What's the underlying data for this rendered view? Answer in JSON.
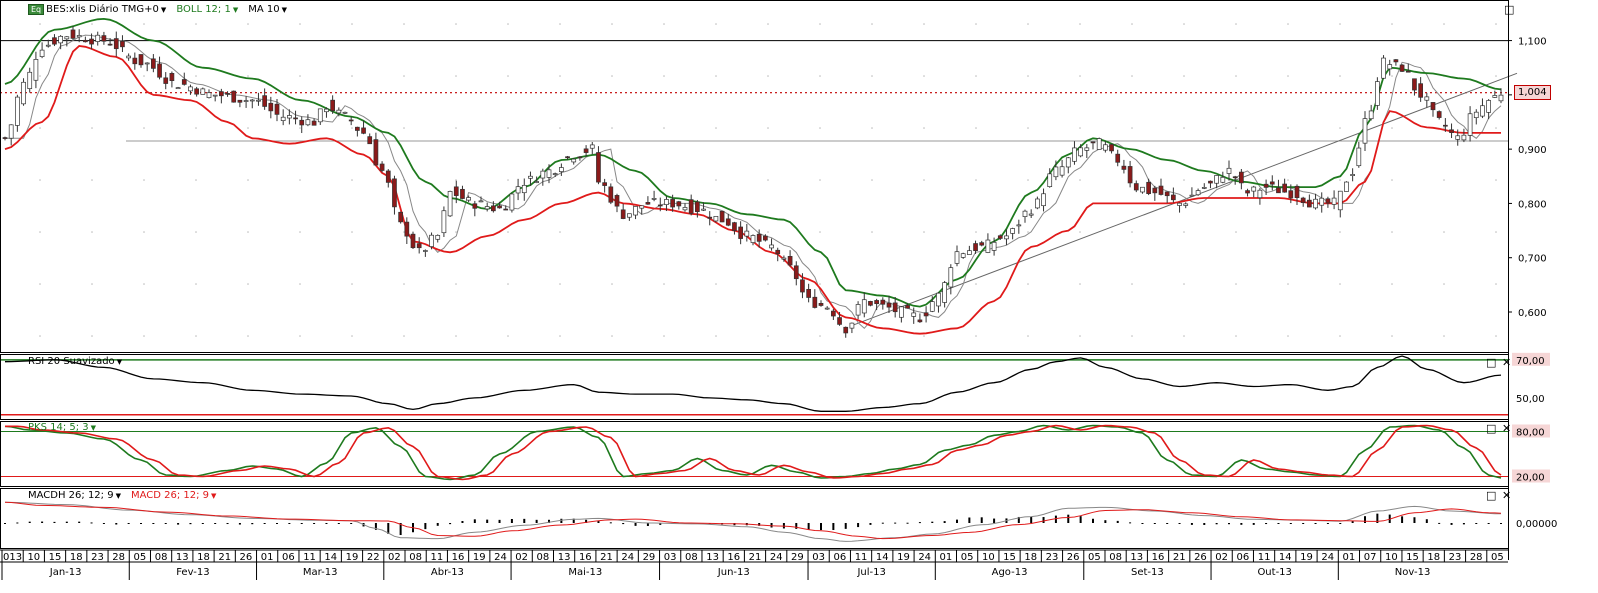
{
  "panes": {
    "price": {
      "title": "BES:xlis Diário TMG+0",
      "badge": "Eq",
      "tags": [
        {
          "label": "BOLL 12; 1",
          "color": "#1e7a1e"
        },
        {
          "label": "MA 10",
          "color": "#000000"
        }
      ],
      "yticks": [
        "1,100",
        "1,000",
        "0,900",
        "0,800",
        "0,700",
        "0,600"
      ],
      "current_price": "1,004"
    },
    "rsi": {
      "title": "RSI 20 Suavizado",
      "levels": [
        "70,00",
        "50,00"
      ]
    },
    "pks": {
      "title": "PKS 14; 5; 3",
      "levels": [
        "80,00",
        "20,00"
      ]
    },
    "macd": {
      "title_h": "MACDH 26; 12; 9",
      "title_m": "MACD 26; 12; 9",
      "level": "0,00000"
    }
  },
  "xaxis": {
    "days": [
      "013",
      "10",
      "15",
      "18",
      "23",
      "28",
      "05",
      "08",
      "13",
      "18",
      "21",
      "26",
      "01",
      "06",
      "11",
      "14",
      "19",
      "22",
      "02",
      "08",
      "11",
      "16",
      "19",
      "24",
      "02",
      "08",
      "13",
      "16",
      "21",
      "24",
      "29",
      "03",
      "08",
      "13",
      "16",
      "21",
      "24",
      "29",
      "03",
      "06",
      "11",
      "14",
      "19",
      "24",
      "01",
      "05",
      "10",
      "15",
      "18",
      "23",
      "26",
      "05",
      "08",
      "13",
      "16",
      "21",
      "26",
      "02",
      "06",
      "11",
      "14",
      "19",
      "24",
      "01",
      "07",
      "10",
      "15",
      "18",
      "23",
      "28",
      "05"
    ],
    "months": [
      "Jan-13",
      "Fev-13",
      "Mar-13",
      "Abr-13",
      "Mai-13",
      "Jun-13",
      "Jul-13",
      "Ago-13",
      "Set-13",
      "Out-13",
      "Nov-13"
    ]
  },
  "colors": {
    "boll_upper": "#1e7a1e",
    "boll_lower": "#e01a1a",
    "ma": "#888888",
    "rsi_line": "#000000",
    "overbought": "#1e7a1e",
    "oversold": "#e01a1a",
    "stoch_k": "#1e7a1e",
    "stoch_d": "#e01a1a",
    "label_bg": "#f6d6d6"
  },
  "chart_data": {
    "type": "line",
    "price_ylim": [
      0.53,
      1.16
    ],
    "price_knots": [
      [
        0,
        0.92
      ],
      [
        3,
        1.02
      ],
      [
        6,
        1.09
      ],
      [
        10,
        1.11
      ],
      [
        16,
        1.1
      ],
      [
        22,
        1.06
      ],
      [
        28,
        1.02
      ],
      [
        34,
        1.0
      ],
      [
        40,
        0.99
      ],
      [
        45,
        0.96
      ],
      [
        50,
        0.95
      ],
      [
        52,
        0.98
      ],
      [
        55,
        0.96
      ],
      [
        58,
        0.93
      ],
      [
        61,
        0.86
      ],
      [
        64,
        0.76
      ],
      [
        67,
        0.71
      ],
      [
        70,
        0.74
      ],
      [
        72,
        0.82
      ],
      [
        76,
        0.8
      ],
      [
        80,
        0.79
      ],
      [
        84,
        0.84
      ],
      [
        88,
        0.86
      ],
      [
        92,
        0.89
      ],
      [
        95,
        0.9
      ],
      [
        96,
        0.84
      ],
      [
        100,
        0.78
      ],
      [
        104,
        0.8
      ],
      [
        108,
        0.8
      ],
      [
        112,
        0.79
      ],
      [
        116,
        0.77
      ],
      [
        120,
        0.74
      ],
      [
        124,
        0.72
      ],
      [
        127,
        0.68
      ],
      [
        130,
        0.62
      ],
      [
        133,
        0.61
      ],
      [
        136,
        0.57
      ],
      [
        139,
        0.62
      ],
      [
        142,
        0.61
      ],
      [
        145,
        0.6
      ],
      [
        148,
        0.59
      ],
      [
        151,
        0.63
      ],
      [
        154,
        0.71
      ],
      [
        158,
        0.72
      ],
      [
        162,
        0.74
      ],
      [
        166,
        0.79
      ],
      [
        170,
        0.86
      ],
      [
        174,
        0.9
      ],
      [
        177,
        0.91
      ],
      [
        180,
        0.88
      ],
      [
        183,
        0.83
      ],
      [
        186,
        0.82
      ],
      [
        190,
        0.8
      ],
      [
        194,
        0.83
      ],
      [
        198,
        0.86
      ],
      [
        201,
        0.82
      ],
      [
        204,
        0.83
      ],
      [
        208,
        0.82
      ],
      [
        212,
        0.8
      ],
      [
        215,
        0.8
      ],
      [
        218,
        0.86
      ],
      [
        220,
        0.95
      ],
      [
        223,
        1.06
      ],
      [
        226,
        1.05
      ],
      [
        229,
        1.0
      ],
      [
        232,
        0.95
      ],
      [
        235,
        0.92
      ],
      [
        238,
        0.97
      ],
      [
        240,
        0.99
      ],
      [
        242,
        1.004
      ]
    ],
    "candle_count": 243,
    "boll_upper_knots": [
      [
        0,
        1.02
      ],
      [
        8,
        1.12
      ],
      [
        16,
        1.14
      ],
      [
        24,
        1.1
      ],
      [
        32,
        1.05
      ],
      [
        40,
        1.03
      ],
      [
        48,
        0.99
      ],
      [
        56,
        0.96
      ],
      [
        62,
        0.93
      ],
      [
        68,
        0.84
      ],
      [
        72,
        0.81
      ],
      [
        78,
        0.79
      ],
      [
        84,
        0.83
      ],
      [
        90,
        0.88
      ],
      [
        96,
        0.89
      ],
      [
        102,
        0.86
      ],
      [
        108,
        0.81
      ],
      [
        114,
        0.8
      ],
      [
        120,
        0.78
      ],
      [
        126,
        0.77
      ],
      [
        132,
        0.71
      ],
      [
        136,
        0.64
      ],
      [
        142,
        0.63
      ],
      [
        148,
        0.61
      ],
      [
        154,
        0.66
      ],
      [
        160,
        0.73
      ],
      [
        166,
        0.82
      ],
      [
        172,
        0.89
      ],
      [
        176,
        0.92
      ],
      [
        182,
        0.9
      ],
      [
        188,
        0.88
      ],
      [
        194,
        0.86
      ],
      [
        200,
        0.84
      ],
      [
        206,
        0.83
      ],
      [
        212,
        0.83
      ],
      [
        216,
        0.85
      ],
      [
        220,
        0.94
      ],
      [
        224,
        1.05
      ],
      [
        230,
        1.04
      ],
      [
        236,
        1.03
      ],
      [
        242,
        1.01
      ]
    ],
    "boll_lower_knots": [
      [
        0,
        0.9
      ],
      [
        6,
        0.95
      ],
      [
        12,
        1.09
      ],
      [
        18,
        1.07
      ],
      [
        24,
        1.0
      ],
      [
        30,
        0.99
      ],
      [
        36,
        0.95
      ],
      [
        40,
        0.92
      ],
      [
        46,
        0.91
      ],
      [
        52,
        0.92
      ],
      [
        58,
        0.89
      ],
      [
        62,
        0.85
      ],
      [
        66,
        0.73
      ],
      [
        72,
        0.71
      ],
      [
        78,
        0.74
      ],
      [
        84,
        0.77
      ],
      [
        90,
        0.8
      ],
      [
        96,
        0.82
      ],
      [
        100,
        0.8
      ],
      [
        106,
        0.79
      ],
      [
        112,
        0.78
      ],
      [
        118,
        0.75
      ],
      [
        124,
        0.71
      ],
      [
        130,
        0.66
      ],
      [
        136,
        0.59
      ],
      [
        142,
        0.57
      ],
      [
        148,
        0.56
      ],
      [
        154,
        0.57
      ],
      [
        160,
        0.62
      ],
      [
        166,
        0.72
      ],
      [
        172,
        0.75
      ],
      [
        176,
        0.8
      ],
      [
        182,
        0.8
      ],
      [
        188,
        0.8
      ],
      [
        194,
        0.81
      ],
      [
        200,
        0.81
      ],
      [
        206,
        0.81
      ],
      [
        212,
        0.8
      ],
      [
        216,
        0.8
      ],
      [
        220,
        0.84
      ],
      [
        224,
        0.97
      ],
      [
        230,
        0.94
      ],
      [
        236,
        0.93
      ],
      [
        242,
        0.93
      ]
    ],
    "hlines": [
      1.1,
      0.915
    ],
    "current_level": 1.004,
    "trendline": [
      [
        137,
        0.575
      ],
      [
        242,
        1.025
      ]
    ],
    "rsi_ylim": [
      40,
      72
    ],
    "rsi_knots": [
      [
        0,
        69
      ],
      [
        8,
        70
      ],
      [
        16,
        66
      ],
      [
        24,
        60
      ],
      [
        32,
        58
      ],
      [
        40,
        54
      ],
      [
        48,
        52
      ],
      [
        56,
        51
      ],
      [
        62,
        47
      ],
      [
        66,
        44
      ],
      [
        70,
        47
      ],
      [
        76,
        50
      ],
      [
        84,
        54
      ],
      [
        92,
        57
      ],
      [
        96,
        53
      ],
      [
        102,
        52
      ],
      [
        108,
        52
      ],
      [
        114,
        50
      ],
      [
        120,
        49
      ],
      [
        126,
        47
      ],
      [
        132,
        43
      ],
      [
        136,
        43
      ],
      [
        142,
        45
      ],
      [
        148,
        47
      ],
      [
        154,
        53
      ],
      [
        160,
        58
      ],
      [
        166,
        65
      ],
      [
        170,
        69
      ],
      [
        174,
        71
      ],
      [
        178,
        66
      ],
      [
        184,
        60
      ],
      [
        190,
        56
      ],
      [
        196,
        58
      ],
      [
        202,
        56
      ],
      [
        208,
        57
      ],
      [
        214,
        54
      ],
      [
        218,
        56
      ],
      [
        222,
        66
      ],
      [
        226,
        72
      ],
      [
        230,
        65
      ],
      [
        236,
        58
      ],
      [
        242,
        62
      ]
    ],
    "pks_ylim": [
      10,
      90
    ],
    "pks_knots": [
      [
        0,
        87
      ],
      [
        4,
        82
      ],
      [
        10,
        78
      ],
      [
        16,
        70
      ],
      [
        22,
        42
      ],
      [
        26,
        22
      ],
      [
        30,
        20
      ],
      [
        36,
        28
      ],
      [
        40,
        34
      ],
      [
        44,
        30
      ],
      [
        48,
        20
      ],
      [
        52,
        38
      ],
      [
        56,
        78
      ],
      [
        60,
        85
      ],
      [
        64,
        60
      ],
      [
        68,
        20
      ],
      [
        72,
        16
      ],
      [
        76,
        22
      ],
      [
        80,
        50
      ],
      [
        86,
        80
      ],
      [
        92,
        86
      ],
      [
        96,
        72
      ],
      [
        100,
        20
      ],
      [
        104,
        24
      ],
      [
        108,
        28
      ],
      [
        112,
        44
      ],
      [
        116,
        28
      ],
      [
        120,
        22
      ],
      [
        124,
        35
      ],
      [
        128,
        26
      ],
      [
        132,
        18
      ],
      [
        136,
        20
      ],
      [
        140,
        24
      ],
      [
        144,
        30
      ],
      [
        148,
        36
      ],
      [
        152,
        55
      ],
      [
        156,
        62
      ],
      [
        160,
        75
      ],
      [
        164,
        80
      ],
      [
        168,
        88
      ],
      [
        172,
        82
      ],
      [
        176,
        88
      ],
      [
        180,
        86
      ],
      [
        184,
        78
      ],
      [
        188,
        42
      ],
      [
        192,
        22
      ],
      [
        196,
        20
      ],
      [
        200,
        42
      ],
      [
        204,
        30
      ],
      [
        208,
        26
      ],
      [
        212,
        22
      ],
      [
        216,
        20
      ],
      [
        220,
        55
      ],
      [
        224,
        86
      ],
      [
        228,
        88
      ],
      [
        232,
        82
      ],
      [
        236,
        58
      ],
      [
        240,
        22
      ],
      [
        242,
        18
      ]
    ],
    "macd_ylim": [
      -0.05,
      0.05
    ],
    "macd_knots": [
      [
        0,
        0.045
      ],
      [
        10,
        0.04
      ],
      [
        20,
        0.028
      ],
      [
        30,
        0.018
      ],
      [
        40,
        0.01
      ],
      [
        50,
        0.006
      ],
      [
        56,
        0.005
      ],
      [
        60,
        -0.012
      ],
      [
        64,
        -0.032
      ],
      [
        70,
        -0.034
      ],
      [
        76,
        -0.02
      ],
      [
        84,
        -0.005
      ],
      [
        92,
        0.008
      ],
      [
        96,
        0.01
      ],
      [
        104,
        0.0
      ],
      [
        112,
        -0.002
      ],
      [
        120,
        -0.008
      ],
      [
        126,
        -0.02
      ],
      [
        132,
        -0.034
      ],
      [
        136,
        -0.04
      ],
      [
        144,
        -0.032
      ],
      [
        150,
        -0.024
      ],
      [
        158,
        -0.004
      ],
      [
        166,
        0.014
      ],
      [
        172,
        0.032
      ],
      [
        178,
        0.034
      ],
      [
        186,
        0.026
      ],
      [
        194,
        0.016
      ],
      [
        202,
        0.008
      ],
      [
        210,
        0.006
      ],
      [
        216,
        0.004
      ],
      [
        222,
        0.026
      ],
      [
        228,
        0.036
      ],
      [
        234,
        0.026
      ],
      [
        242,
        0.02
      ]
    ]
  }
}
